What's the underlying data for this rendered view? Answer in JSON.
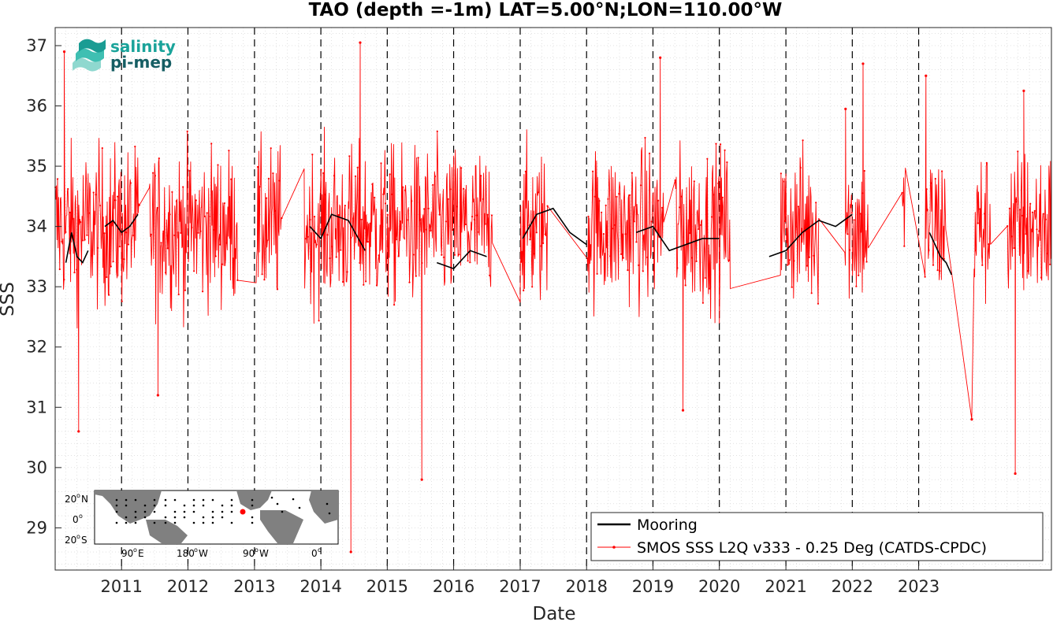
{
  "chart_data": {
    "type": "line",
    "title": "TAO (depth =-1m) LAT=5.00°N;LON=110.00°W",
    "xlabel": "Date",
    "ylabel": "SSS",
    "xlim": [
      "2010-01-01",
      "2024-12-31"
    ],
    "ylim": [
      28.3,
      37.3
    ],
    "x_tick_labels": [
      "2011",
      "2012",
      "2013",
      "2014",
      "2015",
      "2016",
      "2017",
      "2018",
      "2019",
      "2020",
      "2021",
      "2022",
      "2023"
    ],
    "y_ticks": [
      29,
      30,
      31,
      32,
      33,
      34,
      35,
      36,
      37
    ],
    "grid": "minor dotted",
    "year_markers": "dashed vertical lines at January 1 of each year 2011-2023",
    "legend_position": "bottom-right",
    "series": [
      {
        "name": "Mooring",
        "color": "#000000",
        "style": "solid line",
        "segments": [
          {
            "x": [
              "2010-03-01",
              "2010-04-01",
              "2010-05-01",
              "2010-06-01",
              "2010-07-01"
            ],
            "y": [
              33.4,
              33.9,
              33.5,
              33.4,
              33.6
            ]
          },
          {
            "x": [
              "2010-10-01",
              "2010-11-15",
              "2011-01-01",
              "2011-02-15",
              "2011-04-01"
            ],
            "y": [
              34.0,
              34.1,
              33.9,
              34.0,
              34.2
            ]
          },
          {
            "x": [
              "2013-11-01",
              "2014-01-01",
              "2014-03-01",
              "2014-06-01",
              "2014-09-01"
            ],
            "y": [
              34.0,
              33.8,
              34.2,
              34.1,
              33.6
            ]
          },
          {
            "x": [
              "2015-10-01",
              "2016-01-01",
              "2016-04-01",
              "2016-07-01"
            ],
            "y": [
              33.4,
              33.3,
              33.6,
              33.5
            ]
          },
          {
            "x": [
              "2017-01-15",
              "2017-04-01",
              "2017-07-01",
              "2017-10-01",
              "2018-01-01"
            ],
            "y": [
              33.8,
              34.2,
              34.3,
              33.9,
              33.7
            ]
          },
          {
            "x": [
              "2018-10-01",
              "2019-01-01",
              "2019-04-01",
              "2019-07-01",
              "2019-10-01",
              "2020-01-01"
            ],
            "y": [
              33.9,
              34.0,
              33.6,
              33.7,
              33.8,
              33.8
            ]
          },
          {
            "x": [
              "2020-10-01",
              "2021-01-01",
              "2021-04-01",
              "2021-07-01",
              "2021-10-01",
              "2022-01-01"
            ],
            "y": [
              33.5,
              33.6,
              33.9,
              34.1,
              34.0,
              34.2
            ]
          },
          {
            "x": [
              "2023-03-01",
              "2023-04-01",
              "2023-05-01",
              "2023-06-01",
              "2023-07-01"
            ],
            "y": [
              33.9,
              33.7,
              33.5,
              33.4,
              33.2
            ]
          }
        ]
      },
      {
        "name": "SMOS SSS L2Q v333 - 0.25 Deg (CATDS-CPDC)",
        "color": "#ff0000",
        "style": "line with dot markers",
        "mean": 34.0,
        "typical_range": [
          32.5,
          35.5
        ],
        "notable_points": [
          {
            "x": "2010-02-20",
            "y": 36.9
          },
          {
            "x": "2010-05-10",
            "y": 30.6
          },
          {
            "x": "2011-07-20",
            "y": 31.2
          },
          {
            "x": "2014-06-15",
            "y": 28.6
          },
          {
            "x": "2014-08-05",
            "y": 37.05
          },
          {
            "x": "2015-07-10",
            "y": 29.8
          },
          {
            "x": "2019-02-10",
            "y": 36.8
          },
          {
            "x": "2019-06-15",
            "y": 30.95
          },
          {
            "x": "2021-11-25",
            "y": 35.95
          },
          {
            "x": "2022-03-01",
            "y": 36.7
          },
          {
            "x": "2023-02-10",
            "y": 36.5
          },
          {
            "x": "2023-10-20",
            "y": 30.8
          },
          {
            "x": "2024-06-15",
            "y": 29.9
          },
          {
            "x": "2024-08-01",
            "y": 36.25
          }
        ]
      }
    ]
  },
  "logo": {
    "line1": "salinity",
    "line2": "pi-mep"
  },
  "inset_map": {
    "lat_labels": [
      "20",
      "N",
      "0",
      "20",
      "S"
    ],
    "lon_labels": [
      "90",
      "E",
      "180",
      "W",
      "90",
      "W",
      "0"
    ],
    "degree_symbol": "o",
    "marker_color": "#ff0000"
  }
}
